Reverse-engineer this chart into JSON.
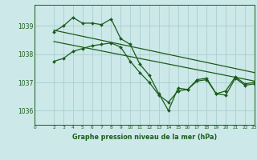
{
  "title": "Graphe pression niveau de la mer (hPa)",
  "background_color": "#cce8e8",
  "grid_color": "#aacece",
  "line_color": "#1a5c1a",
  "x_ticks": [
    0,
    2,
    3,
    4,
    5,
    6,
    7,
    8,
    9,
    10,
    11,
    12,
    13,
    14,
    15,
    16,
    17,
    18,
    19,
    20,
    21,
    22,
    23
  ],
  "ylim": [
    1035.5,
    1039.75
  ],
  "yticks": [
    1036,
    1037,
    1038,
    1039
  ],
  "series1_x": [
    2,
    3,
    4,
    5,
    6,
    7,
    8,
    9,
    10,
    11,
    12,
    13,
    14,
    15,
    16,
    17,
    18,
    19,
    20,
    21,
    22,
    23
  ],
  "series1_y": [
    1038.8,
    1039.0,
    1039.3,
    1039.1,
    1039.1,
    1039.05,
    1039.25,
    1038.55,
    1038.35,
    1037.65,
    1037.25,
    1036.6,
    1036.0,
    1036.8,
    1036.75,
    1037.05,
    1037.1,
    1036.6,
    1036.55,
    1037.15,
    1036.9,
    1036.95
  ],
  "series2_x": [
    2,
    3,
    4,
    5,
    6,
    7,
    8,
    9,
    10,
    11,
    12,
    13,
    14,
    15,
    16,
    17,
    18,
    19,
    20,
    21,
    22,
    23
  ],
  "series2_y": [
    1037.75,
    1037.85,
    1038.1,
    1038.2,
    1038.3,
    1038.35,
    1038.4,
    1038.25,
    1037.75,
    1037.35,
    1037.0,
    1036.55,
    1036.3,
    1036.7,
    1036.75,
    1037.1,
    1037.15,
    1036.6,
    1036.7,
    1037.2,
    1036.95,
    1037.0
  ],
  "trend1_x": [
    2,
    23
  ],
  "trend1_y": [
    1038.85,
    1037.35
  ],
  "trend2_x": [
    2,
    23
  ],
  "trend2_y": [
    1038.45,
    1037.05
  ],
  "xlim": [
    0,
    23
  ]
}
